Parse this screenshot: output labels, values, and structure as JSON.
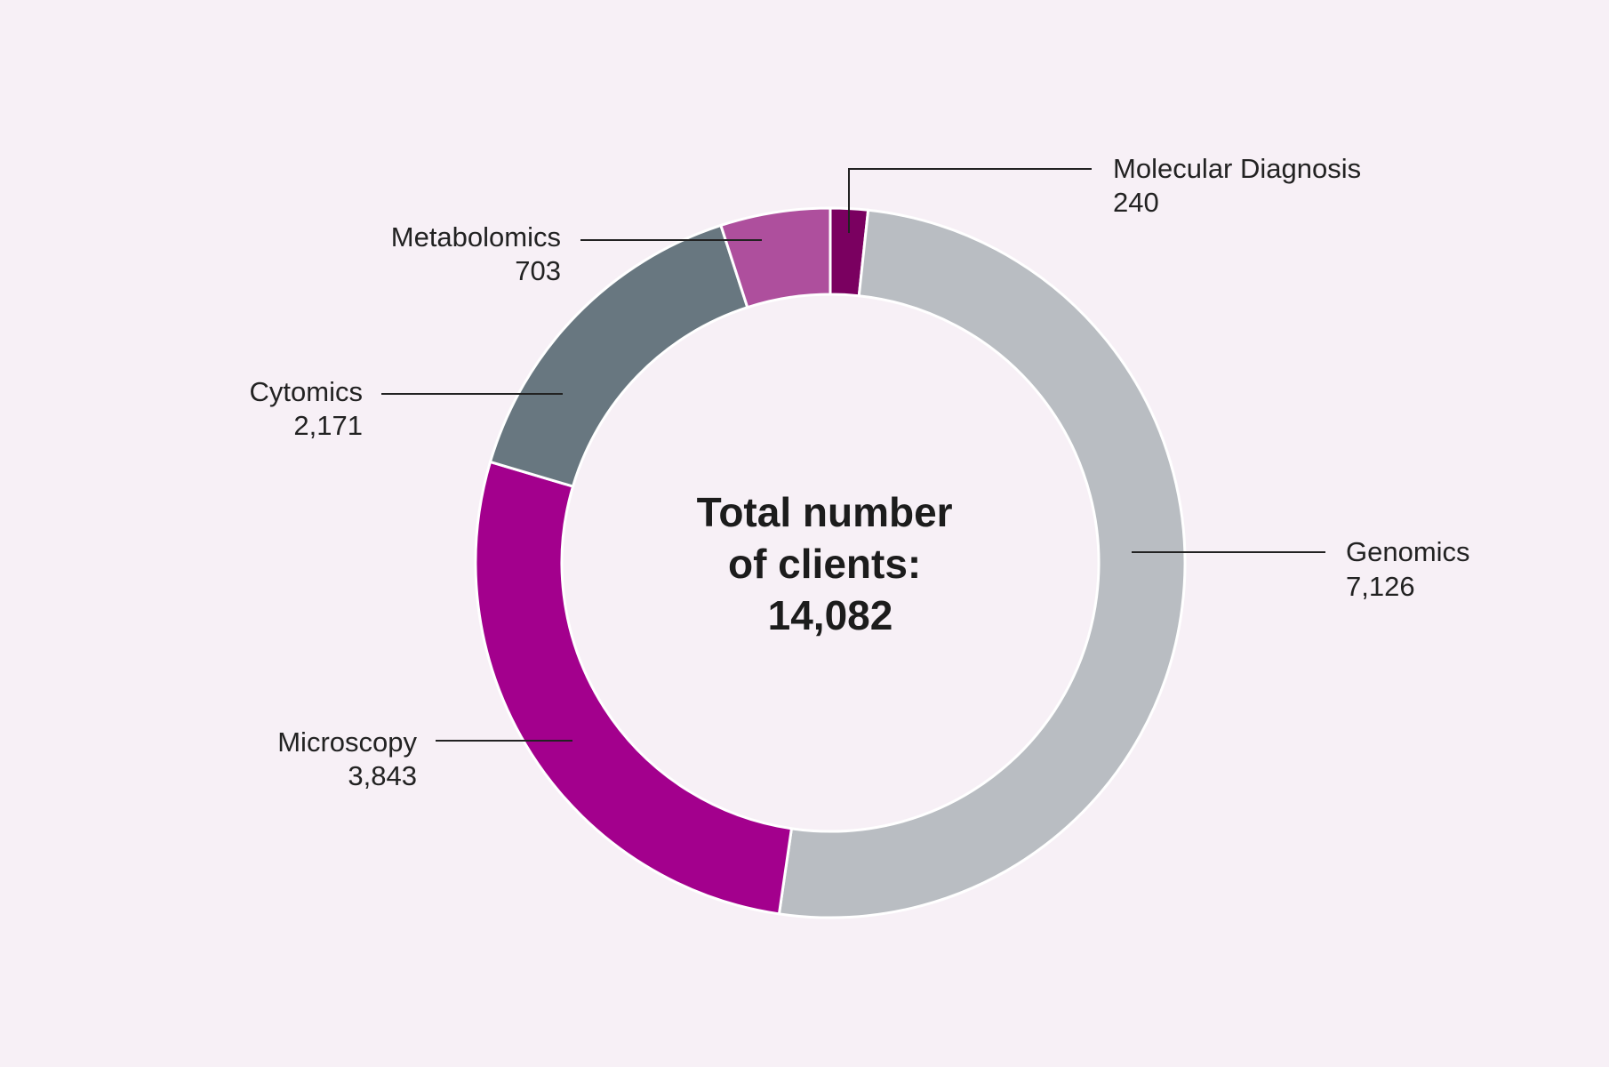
{
  "chart_data": {
    "type": "pie",
    "variant": "donut",
    "center_text": [
      "Total number",
      "of clients:",
      "14,082"
    ],
    "slices": [
      {
        "label": "Molecular Diagnosis",
        "value": 240,
        "value_label": "240",
        "color": "#7a0060"
      },
      {
        "label": "Genomics",
        "value": 7126,
        "value_label": "7,126",
        "color": "#b9bdc2"
      },
      {
        "label": "Microscopy",
        "value": 3843,
        "value_label": "3,843",
        "color": "#a3008d"
      },
      {
        "label": "Cytomics",
        "value": 2171,
        "value_label": "2,171",
        "color": "#687780"
      },
      {
        "label": "Metabolomics",
        "value": 703,
        "value_label": "703",
        "color": "#ae4f9d"
      }
    ],
    "legend": "none",
    "slice_border_color": "#ffffff",
    "leader_line_color": "#222222"
  }
}
